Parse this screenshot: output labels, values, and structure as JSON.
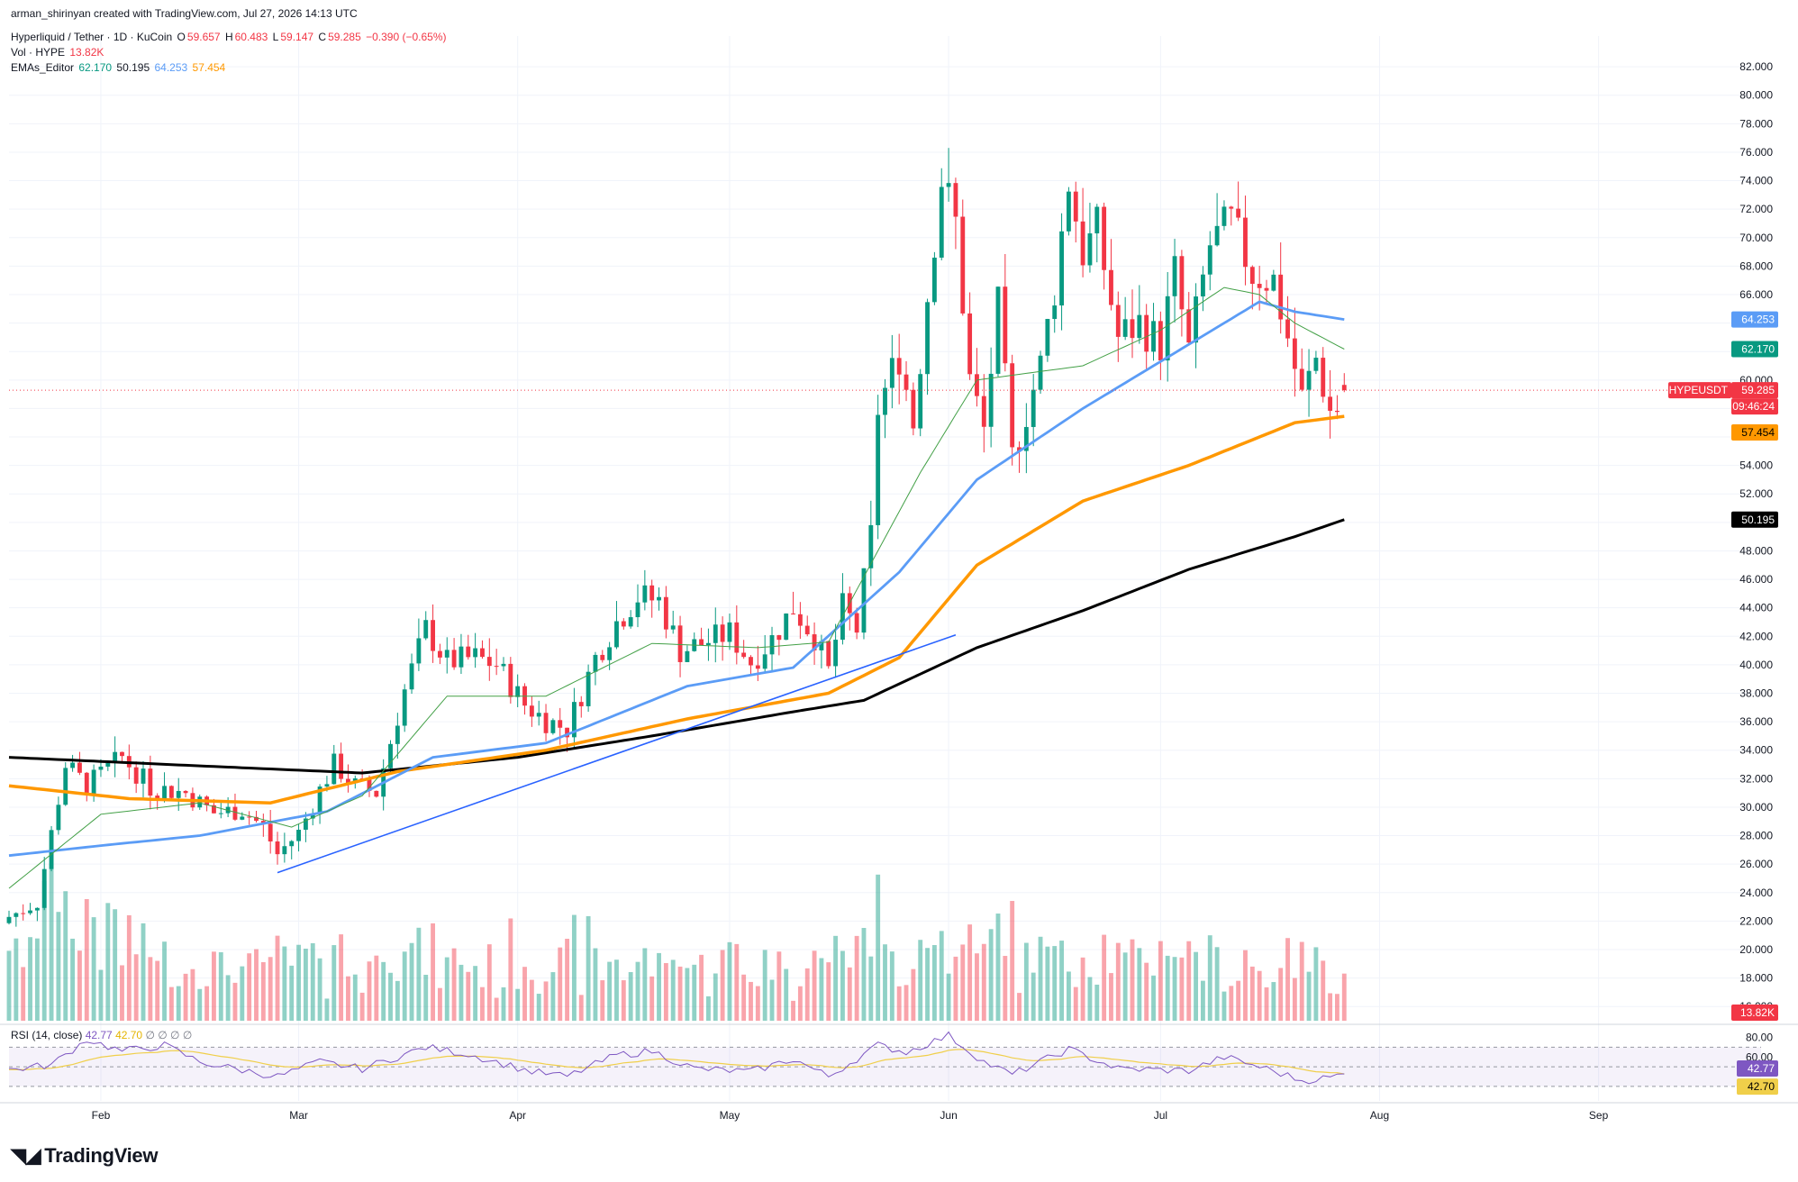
{
  "header": {
    "credit": "arman_shirinyan created with TradingView.com, Jul 27, 2026 14:13 UTC",
    "symbol": "Hyperliquid / Tether · 1D · KuCoin",
    "ohlc": {
      "o_label": "O",
      "o": "59.657",
      "h_label": "H",
      "h": "60.483",
      "l_label": "L",
      "l": "59.147",
      "c_label": "C",
      "c": "59.285",
      "chg": "−0.390 (−0.65%)"
    },
    "vol_label": "Vol · HYPE",
    "vol_value": "13.82K",
    "ema_label": "EMAs_Editor",
    "ema_values": [
      "62.170",
      "50.195",
      "64.253",
      "57.454"
    ]
  },
  "rsi_header": {
    "label": "RSI (14, close)",
    "v1": "42.77",
    "v2": "42.70",
    "extra": "∅ ∅ ∅ ∅"
  },
  "logo": {
    "text": "TradingView"
  },
  "colors": {
    "up": "#089981",
    "down": "#f23645",
    "ema20": "#43a047",
    "ema50": "#5b9cf6",
    "ema100": "#ff9800",
    "ema200": "#000000",
    "trendline": "#2962ff",
    "rsi": "#7e57c2",
    "rsi_ma": "#f0cf4a"
  },
  "chart_data": [
    {
      "type": "candlestick",
      "title": "Hyperliquid / Tether · 1D · KuCoin",
      "y_ticks": [
        16,
        18,
        20,
        22,
        24,
        26,
        28,
        30,
        32,
        34,
        36,
        38,
        40,
        42,
        44,
        46,
        48,
        50,
        52,
        54,
        56,
        58,
        60,
        62,
        64,
        66,
        68,
        70,
        72,
        74,
        76,
        78,
        80,
        82
      ],
      "ylim": [
        15.0,
        83.4
      ],
      "x_tick_labels": [
        "Feb",
        "Mar",
        "Apr",
        "May",
        "Jun",
        "Jul",
        "Aug",
        "Sep"
      ],
      "x_tick_dates": [
        "2026-02-01",
        "2026-03-01",
        "2026-04-01",
        "2026-05-01",
        "2026-06-01",
        "2026-07-01",
        "2026-08-01",
        "2026-09-01"
      ],
      "x_range": [
        "2026-01-19",
        "2026-09-24"
      ],
      "waypoints": [
        [
          "2026-01-19",
          22.3
        ],
        [
          "2026-01-23",
          23.3
        ],
        [
          "2026-01-27",
          33.0
        ],
        [
          "2026-01-30",
          31.5
        ],
        [
          "2026-02-04",
          33.5
        ],
        [
          "2026-02-08",
          31.4
        ],
        [
          "2026-02-13",
          31.0
        ],
        [
          "2026-02-17",
          29.6
        ],
        [
          "2026-02-21",
          29.8
        ],
        [
          "2026-02-24",
          28.6
        ],
        [
          "2026-02-26",
          26.7
        ],
        [
          "2026-03-01",
          28.2
        ],
        [
          "2026-03-04",
          31.2
        ],
        [
          "2026-03-06",
          33.0
        ],
        [
          "2026-03-09",
          31.5
        ],
        [
          "2026-03-12",
          31.0
        ],
        [
          "2026-03-16",
          38.2
        ],
        [
          "2026-03-19",
          42.5
        ],
        [
          "2026-03-22",
          40.2
        ],
        [
          "2026-03-26",
          40.5
        ],
        [
          "2026-03-29",
          40.0
        ],
        [
          "2026-04-02",
          37.2
        ],
        [
          "2026-04-05",
          36.1
        ],
        [
          "2026-04-08",
          35.5
        ],
        [
          "2026-04-12",
          40.5
        ],
        [
          "2026-04-15",
          43.0
        ],
        [
          "2026-04-18",
          44.8
        ],
        [
          "2026-04-21",
          44.5
        ],
        [
          "2026-04-24",
          41.0
        ],
        [
          "2026-04-27",
          41.5
        ],
        [
          "2026-05-01",
          42.2
        ],
        [
          "2026-05-04",
          40.2
        ],
        [
          "2026-05-07",
          41.8
        ],
        [
          "2026-05-10",
          44.0
        ],
        [
          "2026-05-13",
          42.0
        ],
        [
          "2026-05-15",
          39.5
        ],
        [
          "2026-05-17",
          44.0
        ],
        [
          "2026-05-19",
          42.5
        ],
        [
          "2026-05-21",
          49.0
        ],
        [
          "2026-05-22",
          58.0
        ],
        [
          "2026-05-25",
          61.8
        ],
        [
          "2026-05-27",
          57.0
        ],
        [
          "2026-05-29",
          66.0
        ],
        [
          "2026-05-31",
          74.2
        ],
        [
          "2026-06-02",
          71.0
        ],
        [
          "2026-06-04",
          60.0
        ],
        [
          "2026-06-06",
          56.5
        ],
        [
          "2026-06-08",
          65.0
        ],
        [
          "2026-06-10",
          54.5
        ],
        [
          "2026-06-12",
          57.8
        ],
        [
          "2026-06-14",
          61.0
        ],
        [
          "2026-06-16",
          66.5
        ],
        [
          "2026-06-18",
          74.0
        ],
        [
          "2026-06-20",
          69.0
        ],
        [
          "2026-06-22",
          70.5
        ],
        [
          "2026-06-25",
          63.0
        ],
        [
          "2026-06-28",
          64.0
        ],
        [
          "2026-07-01",
          62.5
        ],
        [
          "2026-07-03",
          67.5
        ],
        [
          "2026-07-05",
          62.0
        ],
        [
          "2026-07-08",
          69.5
        ],
        [
          "2026-07-11",
          71.0
        ],
        [
          "2026-07-14",
          67.5
        ],
        [
          "2026-07-17",
          67.0
        ],
        [
          "2026-07-19",
          63.0
        ],
        [
          "2026-07-21",
          58.7
        ],
        [
          "2026-07-23",
          61.5
        ],
        [
          "2026-07-25",
          57.8
        ],
        [
          "2026-07-26",
          58.0
        ],
        [
          "2026-07-27",
          59.285
        ]
      ],
      "last_bar": {
        "date": "2026-07-27",
        "open": 59.657,
        "high": 60.483,
        "low": 59.147,
        "close": 59.285
      },
      "series": [
        {
          "name": "EMA 200",
          "points": [
            [
              "2026-01-19",
              33.5
            ],
            [
              "2026-02-15",
              32.9
            ],
            [
              "2026-03-10",
              32.4
            ],
            [
              "2026-04-01",
              33.5
            ],
            [
              "2026-04-20",
              35.0
            ],
            [
              "2026-05-10",
              36.7
            ],
            [
              "2026-05-20",
              37.5
            ],
            [
              "2026-06-05",
              41.2
            ],
            [
              "2026-06-20",
              43.8
            ],
            [
              "2026-07-05",
              46.7
            ],
            [
              "2026-07-20",
              49.0
            ],
            [
              "2026-07-27",
              50.195
            ]
          ]
        },
        {
          "name": "EMA 100",
          "points": [
            [
              "2026-01-19",
              31.5
            ],
            [
              "2026-02-05",
              30.6
            ],
            [
              "2026-02-25",
              30.3
            ],
            [
              "2026-03-15",
              32.5
            ],
            [
              "2026-04-05",
              34.0
            ],
            [
              "2026-04-25",
              36.2
            ],
            [
              "2026-05-15",
              38.0
            ],
            [
              "2026-05-25",
              40.5
            ],
            [
              "2026-06-05",
              47.0
            ],
            [
              "2026-06-20",
              51.5
            ],
            [
              "2026-07-05",
              54.0
            ],
            [
              "2026-07-20",
              57.0
            ],
            [
              "2026-07-27",
              57.454
            ]
          ]
        },
        {
          "name": "EMA 50",
          "points": [
            [
              "2026-01-19",
              26.6
            ],
            [
              "2026-02-01",
              27.3
            ],
            [
              "2026-02-15",
              28.0
            ],
            [
              "2026-03-05",
              29.7
            ],
            [
              "2026-03-20",
              33.5
            ],
            [
              "2026-04-05",
              34.5
            ],
            [
              "2026-04-25",
              38.5
            ],
            [
              "2026-05-10",
              39.8
            ],
            [
              "2026-05-25",
              46.5
            ],
            [
              "2026-06-05",
              53.0
            ],
            [
              "2026-06-20",
              58.0
            ],
            [
              "2026-07-05",
              62.5
            ],
            [
              "2026-07-15",
              65.5
            ],
            [
              "2026-07-20",
              64.8
            ],
            [
              "2026-07-27",
              64.253
            ]
          ]
        },
        {
          "name": "EMA 20",
          "points": [
            [
              "2026-01-19",
              24.3
            ],
            [
              "2026-02-01",
              29.5
            ],
            [
              "2026-02-15",
              30.3
            ],
            [
              "2026-02-28",
              28.6
            ],
            [
              "2026-03-10",
              30.8
            ],
            [
              "2026-03-22",
              37.8
            ],
            [
              "2026-04-05",
              37.8
            ],
            [
              "2026-04-20",
              41.5
            ],
            [
              "2026-05-05",
              41.2
            ],
            [
              "2026-05-15",
              41.6
            ],
            [
              "2026-05-28",
              53.5
            ],
            [
              "2026-06-05",
              60.0
            ],
            [
              "2026-06-20",
              61.0
            ],
            [
              "2026-07-01",
              63.5
            ],
            [
              "2026-07-10",
              66.5
            ],
            [
              "2026-07-15",
              66.0
            ],
            [
              "2026-07-20",
              64.0
            ],
            [
              "2026-07-27",
              62.17
            ]
          ]
        },
        {
          "name": "trendline",
          "points": [
            [
              "2026-02-26",
              25.4
            ],
            [
              "2026-06-02",
              42.1
            ]
          ]
        }
      ],
      "price_labels": [
        {
          "text": "64.253",
          "value": 64.253,
          "color": "#5b9cf6"
        },
        {
          "text": "62.170",
          "value": 62.17,
          "color": "#089981"
        },
        {
          "text": "HYPEUSDT",
          "value": 59.285,
          "color": "#f23645"
        },
        {
          "text": "59.285",
          "value": 59.285,
          "color": "#f23645"
        },
        {
          "text": "09:46:24",
          "value": 59.285,
          "color": "#f23645"
        },
        {
          "text": "57.454",
          "value": 57.454,
          "color": "#ff9800"
        },
        {
          "text": "50.195",
          "value": 50.195,
          "color": "#000000"
        },
        {
          "text": "13.82K",
          "value": 13.82,
          "color": "#f23645"
        }
      ]
    },
    {
      "type": "line",
      "title": "RSI (14, close)",
      "y_ticks": [
        60.0,
        80.0
      ],
      "ylim": [
        17,
        86
      ],
      "bands": [
        30,
        50,
        70
      ],
      "waypoints": [
        [
          "2026-01-19",
          47
        ],
        [
          "2026-01-25",
          52
        ],
        [
          "2026-01-30",
          78
        ],
        [
          "2026-02-04",
          66
        ],
        [
          "2026-02-10",
          72
        ],
        [
          "2026-02-15",
          55
        ],
        [
          "2026-02-20",
          48
        ],
        [
          "2026-02-26",
          40
        ],
        [
          "2026-03-04",
          55
        ],
        [
          "2026-03-10",
          48
        ],
        [
          "2026-03-19",
          70
        ],
        [
          "2026-03-25",
          63
        ],
        [
          "2026-04-03",
          45
        ],
        [
          "2026-04-08",
          40
        ],
        [
          "2026-04-15",
          62
        ],
        [
          "2026-04-20",
          66
        ],
        [
          "2026-04-26",
          48
        ],
        [
          "2026-05-04",
          45
        ],
        [
          "2026-05-10",
          58
        ],
        [
          "2026-05-15",
          40
        ],
        [
          "2026-05-22",
          72
        ],
        [
          "2026-05-26",
          65
        ],
        [
          "2026-06-01",
          82
        ],
        [
          "2026-06-06",
          55
        ],
        [
          "2026-06-10",
          42
        ],
        [
          "2026-06-18",
          68
        ],
        [
          "2026-06-25",
          48
        ],
        [
          "2026-07-05",
          46
        ],
        [
          "2026-07-10",
          60
        ],
        [
          "2026-07-16",
          48
        ],
        [
          "2026-07-21",
          36
        ],
        [
          "2026-07-25",
          39
        ],
        [
          "2026-07-27",
          42.77
        ]
      ],
      "series": [
        {
          "name": "RSI",
          "last": 42.77
        },
        {
          "name": "RSI-based MA",
          "last": 42.7
        }
      ],
      "price_labels": [
        {
          "text": "42.77",
          "value": 42.77,
          "color": "#7e57c2"
        },
        {
          "text": "42.70",
          "value": 42.7,
          "color": "#f0cf4a"
        }
      ]
    }
  ]
}
